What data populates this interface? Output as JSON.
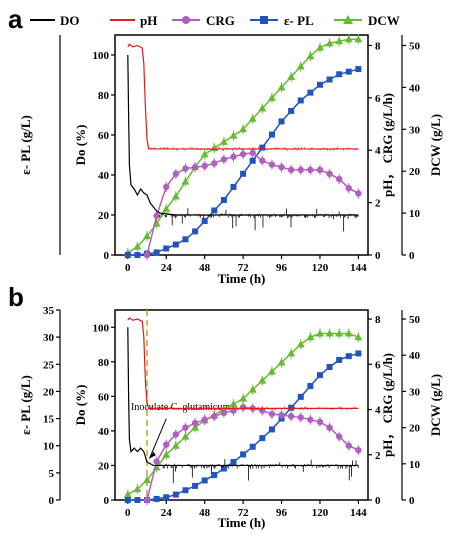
{
  "legend": {
    "items": [
      {
        "label": "DO",
        "color": "#000000",
        "marker": "none"
      },
      {
        "label": "pH",
        "color": "#e41a1c",
        "marker": "none"
      },
      {
        "label": "CRG",
        "color": "#b05fc0",
        "marker": "circle"
      },
      {
        "label": "ε- PL",
        "color": "#2255bb",
        "marker": "square"
      },
      {
        "label": "DCW",
        "color": "#66bb33",
        "marker": "triangle"
      }
    ]
  },
  "chart_data": [
    {
      "panel": "a",
      "type": "line",
      "xlabel": "Time (h)",
      "x_ticks": [
        0,
        24,
        48,
        72,
        96,
        120,
        144
      ],
      "xlim": [
        -8,
        150
      ],
      "axes": {
        "ylabel_left_outer": "ε- PL (g/L)",
        "ylabel_left_inner": "Do (%)",
        "ylabel_right_inner": "pH， CRG (g/L/h)",
        "ylabel_right_outer": "DCW (g/L)",
        "do_ticks": [
          0,
          20,
          40,
          60,
          80,
          100
        ],
        "do_lim": [
          0,
          110
        ],
        "ph_crg_ticks": [
          0,
          2,
          4,
          6,
          8
        ],
        "ph_crg_lim": [
          0,
          8.4
        ],
        "dcw_ticks": [
          0,
          10,
          20,
          30,
          40,
          50
        ],
        "dcw_lim": [
          0,
          52.5
        ],
        "epl_ticks": [],
        "epl_lim": [
          0,
          35
        ]
      },
      "series": [
        {
          "name": "DCW",
          "axis": "dcw",
          "x": [
            0,
            6,
            12,
            18,
            24,
            30,
            36,
            42,
            48,
            54,
            60,
            66,
            72,
            78,
            84,
            90,
            96,
            102,
            108,
            114,
            120,
            126,
            132,
            138,
            144
          ],
          "y": [
            0.5,
            2.0,
            4.5,
            7.5,
            11.0,
            14.0,
            17.5,
            21.0,
            24.0,
            25.5,
            27.0,
            28.5,
            30.0,
            32.5,
            35.0,
            37.5,
            40.0,
            42.5,
            45.0,
            47.5,
            49.5,
            50.5,
            51.0,
            51.5,
            51.5
          ]
        },
        {
          "name": "ε- PL",
          "axis": "ph_crg",
          "x": [
            0,
            6,
            12,
            18,
            24,
            30,
            36,
            42,
            48,
            54,
            60,
            66,
            72,
            78,
            84,
            90,
            96,
            102,
            108,
            114,
            120,
            126,
            132,
            138,
            144
          ],
          "y": [
            0.0,
            0.0,
            0.05,
            0.1,
            0.25,
            0.4,
            0.6,
            0.9,
            1.3,
            1.7,
            2.1,
            2.6,
            3.1,
            3.6,
            4.1,
            4.6,
            5.1,
            5.5,
            5.9,
            6.2,
            6.5,
            6.7,
            6.9,
            7.0,
            7.1
          ]
        },
        {
          "name": "CRG",
          "axis": "ph_crg",
          "x": [
            12,
            18,
            24,
            30,
            36,
            42,
            48,
            54,
            60,
            66,
            72,
            78,
            84,
            90,
            96,
            102,
            108,
            114,
            120,
            126,
            132,
            138,
            144
          ],
          "y": [
            0.0,
            1.5,
            2.6,
            3.1,
            3.3,
            3.35,
            3.4,
            3.5,
            3.65,
            3.75,
            3.85,
            3.9,
            3.6,
            3.45,
            3.35,
            3.25,
            3.25,
            3.25,
            3.25,
            3.1,
            2.9,
            2.55,
            2.35
          ]
        },
        {
          "name": "pH",
          "axis": "ph_crg",
          "x": [
            0,
            1,
            3,
            6,
            9,
            10,
            11,
            12,
            13,
            15,
            20,
            40,
            60,
            80,
            100,
            120,
            144
          ],
          "y": [
            7.95,
            8.05,
            7.95,
            8.0,
            7.9,
            7.3,
            5.6,
            4.4,
            4.05,
            4.05,
            4.05,
            4.05,
            4.05,
            4.05,
            4.05,
            4.05,
            4.05
          ]
        },
        {
          "name": "DO",
          "axis": "do",
          "x": [
            0,
            0.5,
            1,
            2,
            4,
            6,
            8,
            10,
            12,
            14,
            16,
            18,
            20,
            30,
            40,
            60,
            80,
            100,
            120,
            144
          ],
          "y": [
            100,
            70,
            45,
            35,
            33,
            30,
            33,
            31,
            30,
            26,
            24,
            22,
            21,
            20,
            20,
            20,
            20,
            20,
            20,
            20
          ]
        }
      ]
    },
    {
      "panel": "b",
      "type": "line",
      "xlabel": "Time (h)",
      "x_ticks": [
        0,
        24,
        48,
        72,
        96,
        120,
        144
      ],
      "xlim": [
        -8,
        150
      ],
      "annotation": "Inoculate C. glutamicum",
      "inoculation_time": 12,
      "axes": {
        "ylabel_left_outer": "ε- PL (g/L)",
        "ylabel_left_inner": "Do (%)",
        "ylabel_right_inner": "pH， CRG (g/L/h)",
        "ylabel_right_outer": "DCW (g/L)",
        "do_ticks": [
          0,
          20,
          40,
          60,
          80,
          100
        ],
        "do_lim": [
          0,
          110
        ],
        "ph_crg_ticks": [
          0,
          2,
          4,
          6,
          8
        ],
        "ph_crg_lim": [
          0,
          8.4
        ],
        "dcw_ticks": [
          0,
          10,
          20,
          30,
          40,
          50
        ],
        "dcw_lim": [
          0,
          52.5
        ],
        "epl_ticks": [
          0,
          5,
          10,
          15,
          20,
          25,
          30,
          35
        ],
        "epl_lim": [
          0,
          35
        ]
      },
      "series": [
        {
          "name": "DCW",
          "axis": "dcw",
          "x": [
            0,
            6,
            12,
            18,
            24,
            30,
            36,
            42,
            48,
            54,
            60,
            66,
            72,
            78,
            84,
            90,
            96,
            102,
            108,
            114,
            120,
            126,
            132,
            138,
            144
          ],
          "y": [
            1.5,
            3.0,
            5.5,
            9.0,
            12.5,
            15.0,
            17.5,
            20.0,
            22.0,
            23.5,
            25.0,
            26.5,
            28.0,
            30.5,
            33.0,
            35.5,
            38.0,
            40.5,
            43.0,
            45.0,
            46.0,
            46.0,
            46.0,
            46.0,
            45.0
          ]
        },
        {
          "name": "ε- PL",
          "axis": "epl",
          "x": [
            0,
            6,
            12,
            18,
            24,
            30,
            36,
            42,
            48,
            54,
            60,
            66,
            72,
            78,
            84,
            90,
            96,
            102,
            108,
            114,
            120,
            126,
            132,
            138,
            144
          ],
          "y": [
            0.0,
            0.0,
            0.0,
            0.2,
            0.5,
            1.0,
            1.8,
            2.6,
            3.6,
            4.6,
            5.8,
            7.0,
            8.4,
            9.8,
            11.4,
            13.0,
            15.0,
            17.0,
            19.0,
            21.0,
            23.0,
            24.5,
            25.8,
            26.5,
            27.0
          ]
        },
        {
          "name": "CRG",
          "axis": "ph_crg",
          "x": [
            12,
            18,
            24,
            30,
            36,
            42,
            48,
            54,
            60,
            66,
            72,
            78,
            84,
            90,
            96,
            102,
            108,
            114,
            120,
            126,
            132,
            138,
            144
          ],
          "y": [
            0.0,
            1.7,
            2.45,
            2.9,
            3.2,
            3.4,
            3.55,
            3.7,
            3.85,
            3.95,
            4.1,
            4.05,
            3.95,
            3.8,
            3.75,
            3.7,
            3.65,
            3.55,
            3.45,
            3.2,
            2.8,
            2.4,
            2.2
          ]
        },
        {
          "name": "pH",
          "axis": "ph_crg",
          "x": [
            0,
            1,
            3,
            6,
            9,
            10,
            11,
            12,
            13,
            15,
            20,
            40,
            60,
            80,
            100,
            120,
            144
          ],
          "y": [
            7.95,
            8.05,
            7.95,
            8.0,
            7.9,
            7.2,
            5.2,
            4.3,
            4.05,
            4.05,
            4.05,
            4.05,
            4.05,
            4.05,
            4.05,
            4.05,
            4.05
          ]
        },
        {
          "name": "DO",
          "axis": "do",
          "x": [
            0,
            0.5,
            1,
            2,
            4,
            6,
            8,
            10,
            12,
            14,
            16,
            18,
            20,
            30,
            40,
            60,
            80,
            100,
            120,
            144
          ],
          "y": [
            100,
            60,
            35,
            28,
            30,
            28,
            30,
            28,
            22,
            21,
            20,
            20,
            20,
            20,
            20,
            20,
            20,
            20,
            20,
            20
          ]
        }
      ]
    }
  ],
  "panels": [
    {
      "letter": "a"
    },
    {
      "letter": "b"
    }
  ]
}
